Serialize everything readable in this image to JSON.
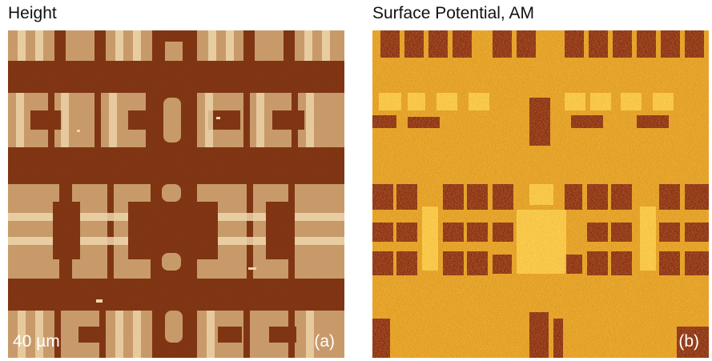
{
  "panels": [
    {
      "id": "a",
      "title": "Height",
      "label": "(a)",
      "scale_bar": "40 µm",
      "colors": {
        "background": "#7a2c0b",
        "pattern": "#c99b6a",
        "highlight": "#f3dcb2"
      }
    },
    {
      "id": "b",
      "title": "Surface Potential, AM",
      "label": "(b)",
      "colors": {
        "background": "#e29a1a",
        "dark": "#7a1606",
        "bright": "#ffd24a"
      }
    }
  ]
}
